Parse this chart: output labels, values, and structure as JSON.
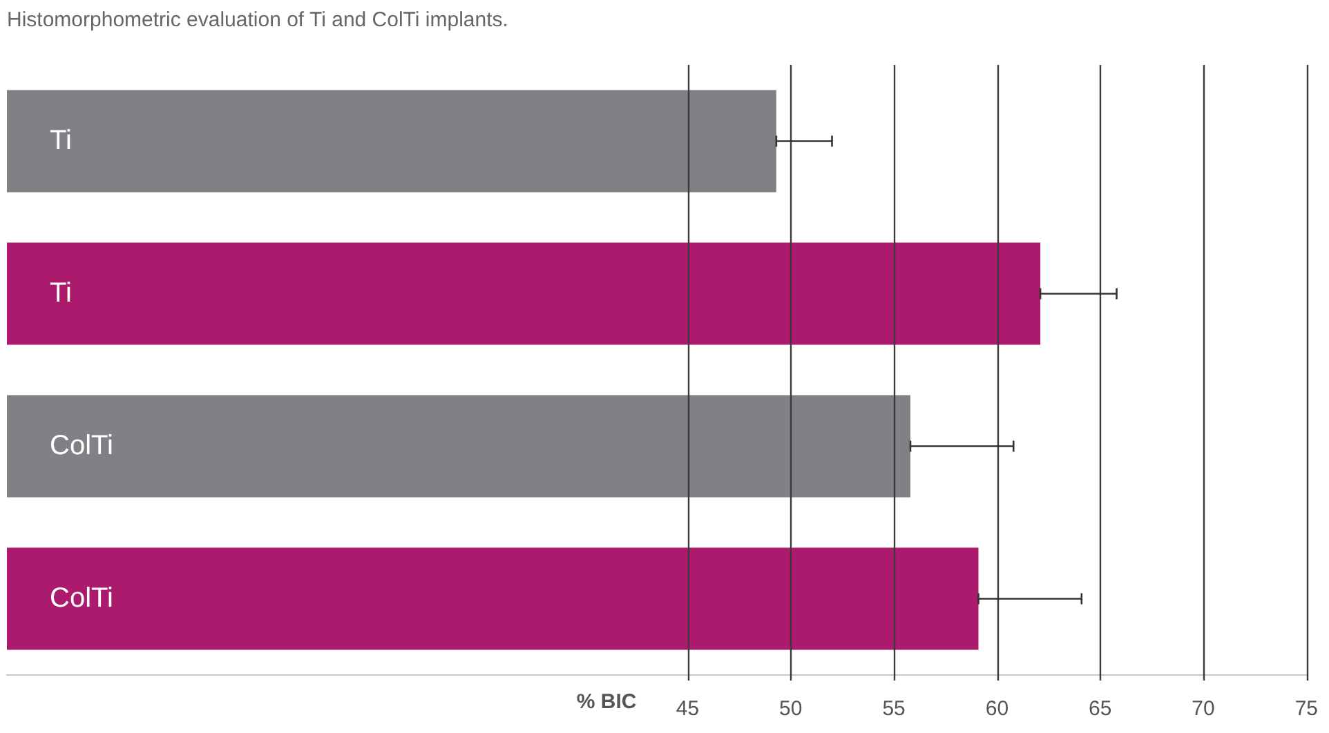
{
  "chart_data": {
    "type": "bar",
    "orientation": "horizontal",
    "title": "Histomorphometric evaluation of Ti and ColTi implants.",
    "xlabel": "% BIC",
    "categories": [
      "Ti",
      "Ti",
      "ColTi",
      "ColTi"
    ],
    "values": [
      49.3,
      62.1,
      55.8,
      59.1
    ],
    "errors": [
      2.7,
      3.7,
      5.0,
      5.0
    ],
    "colors": [
      "#808184",
      "#ab1a6c",
      "#808184",
      "#ab1a6c"
    ],
    "xlim": [
      12,
      75
    ],
    "xticks": [
      45,
      50,
      55,
      60,
      65,
      70,
      75
    ],
    "grid": "x",
    "legend": false
  }
}
